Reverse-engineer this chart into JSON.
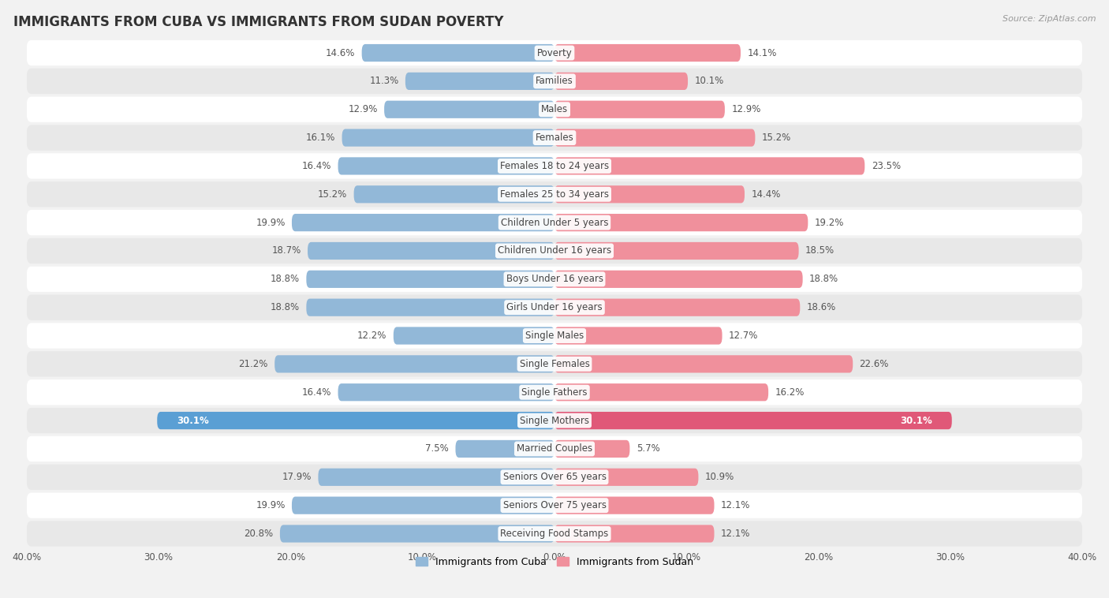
{
  "title": "IMMIGRANTS FROM CUBA VS IMMIGRANTS FROM SUDAN POVERTY",
  "source": "Source: ZipAtlas.com",
  "categories": [
    "Poverty",
    "Families",
    "Males",
    "Females",
    "Females 18 to 24 years",
    "Females 25 to 34 years",
    "Children Under 5 years",
    "Children Under 16 years",
    "Boys Under 16 years",
    "Girls Under 16 years",
    "Single Males",
    "Single Females",
    "Single Fathers",
    "Single Mothers",
    "Married Couples",
    "Seniors Over 65 years",
    "Seniors Over 75 years",
    "Receiving Food Stamps"
  ],
  "cuba_values": [
    14.6,
    11.3,
    12.9,
    16.1,
    16.4,
    15.2,
    19.9,
    18.7,
    18.8,
    18.8,
    12.2,
    21.2,
    16.4,
    30.1,
    7.5,
    17.9,
    19.9,
    20.8
  ],
  "sudan_values": [
    14.1,
    10.1,
    12.9,
    15.2,
    23.5,
    14.4,
    19.2,
    18.5,
    18.8,
    18.6,
    12.7,
    22.6,
    16.2,
    30.1,
    5.7,
    10.9,
    12.1,
    12.1
  ],
  "cuba_color": "#92b8d8",
  "sudan_color": "#f0909c",
  "highlight_cuba_color": "#5a9fd4",
  "highlight_sudan_color": "#e05878",
  "axis_max": 40.0,
  "bar_height": 0.62,
  "background_color": "#f2f2f2",
  "row_even_color": "#ffffff",
  "row_odd_color": "#e8e8e8",
  "title_fontsize": 12,
  "label_fontsize": 8.5,
  "value_fontsize": 8.5,
  "legend_fontsize": 9,
  "highlight_indices": [
    13
  ]
}
